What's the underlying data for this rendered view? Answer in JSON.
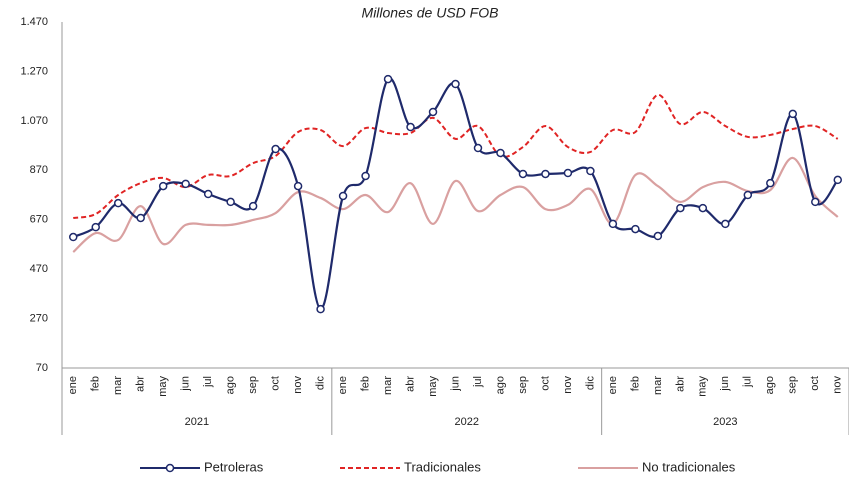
{
  "chart_data": {
    "type": "line",
    "title": "Millones de USD FOB",
    "groups": [
      {
        "name": "2021",
        "categories": [
          "ene",
          "feb",
          "mar",
          "abr",
          "may",
          "jun",
          "jul",
          "ago",
          "sep",
          "oct",
          "nov",
          "dic"
        ]
      },
      {
        "name": "2022",
        "categories": [
          "ene",
          "feb",
          "mar",
          "abr",
          "may",
          "jun",
          "jul",
          "ago",
          "sep",
          "oct",
          "nov",
          "dic"
        ]
      },
      {
        "name": "2023",
        "categories": [
          "ene",
          "feb",
          "mar",
          "abr",
          "may",
          "jun",
          "jul",
          "ago",
          "sep",
          "oct",
          "nov"
        ]
      }
    ],
    "ylim": [
      70,
      1470
    ],
    "yticks": [
      70,
      270,
      470,
      670,
      870,
      {
        "value": 1070,
        "label": "1.070"
      },
      {
        "value": 1270,
        "label": "1.270"
      },
      {
        "value": 1470,
        "label": "1.470"
      }
    ],
    "grid": false,
    "legend": "bottom",
    "series": [
      {
        "name": "Petroleras",
        "color": "#1f2a6b",
        "style": "solid",
        "markers": true,
        "values": [
          600,
          640,
          737,
          677,
          806,
          815,
          774,
          742,
          725,
          956,
          806,
          308,
          766,
          847,
          1239,
          1045,
          1106,
          1219,
          960,
          940,
          855,
          855,
          859,
          867,
          653,
          632,
          604,
          717,
          717,
          653,
          770,
          818,
          1098,
          742,
          831
        ]
      },
      {
        "name": "Tradicionales",
        "color": "#e02424",
        "style": "dashed",
        "markers": false,
        "values": [
          677,
          693,
          770,
          818,
          839,
          802,
          851,
          847,
          899,
          928,
          1025,
          1033,
          968,
          1041,
          1021,
          1021,
          1082,
          997,
          1049,
          928,
          964,
          1049,
          964,
          944,
          1033,
          1025,
          1175,
          1057,
          1106,
          1049,
          1005,
          1013,
          1037,
          1049,
          997
        ]
      },
      {
        "name": "No tradicionales",
        "color": "#d9a0a0",
        "style": "solid",
        "markers": false,
        "values": [
          539,
          616,
          588,
          725,
          572,
          649,
          649,
          649,
          669,
          697,
          782,
          758,
          713,
          770,
          701,
          818,
          653,
          827,
          705,
          770,
          802,
          713,
          730,
          794,
          653,
          851,
          806,
          742,
          802,
          823,
          786,
          790,
          920,
          766,
          681
        ]
      }
    ]
  }
}
